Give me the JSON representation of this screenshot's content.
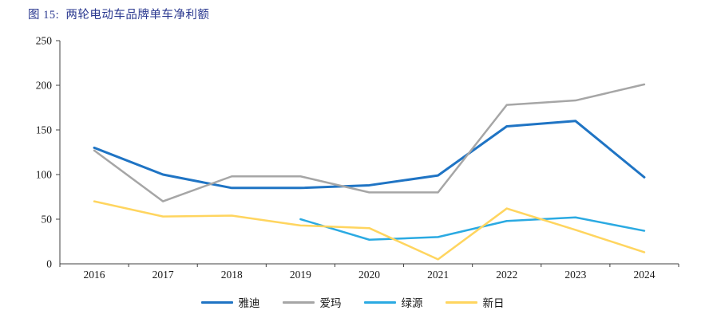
{
  "figure": {
    "title": "图 15:  两轮电动车品牌单车净利额",
    "title_color": "#2B3990"
  },
  "chart_data": {
    "type": "line",
    "title": "两轮电动车品牌单车净利额",
    "categories": [
      "2016",
      "2017",
      "2018",
      "2019",
      "2020",
      "2021",
      "2022",
      "2023",
      "2024"
    ],
    "series": [
      {
        "name": "雅迪",
        "color": "#1F74C4",
        "values": [
          130,
          100,
          85,
          85,
          88,
          99,
          154,
          160,
          97
        ]
      },
      {
        "name": "爱玛",
        "color": "#A6A6A6",
        "values": [
          127,
          70,
          98,
          98,
          80,
          80,
          178,
          183,
          201
        ]
      },
      {
        "name": "绿源",
        "color": "#2BAAE2",
        "values": [
          null,
          null,
          null,
          50,
          27,
          30,
          48,
          52,
          37
        ]
      },
      {
        "name": "新日",
        "color": "#FFD55F",
        "values": [
          70,
          53,
          54,
          43,
          40,
          5,
          62,
          38,
          13
        ]
      }
    ],
    "xlabel": "",
    "ylabel": "",
    "ylim": [
      0,
      250
    ],
    "y_ticks": [
      0,
      50,
      100,
      150,
      200,
      250
    ],
    "grid": false,
    "legend_position": "bottom",
    "axis_color": "#404040",
    "tick_label_color": "#1a1a1a"
  }
}
